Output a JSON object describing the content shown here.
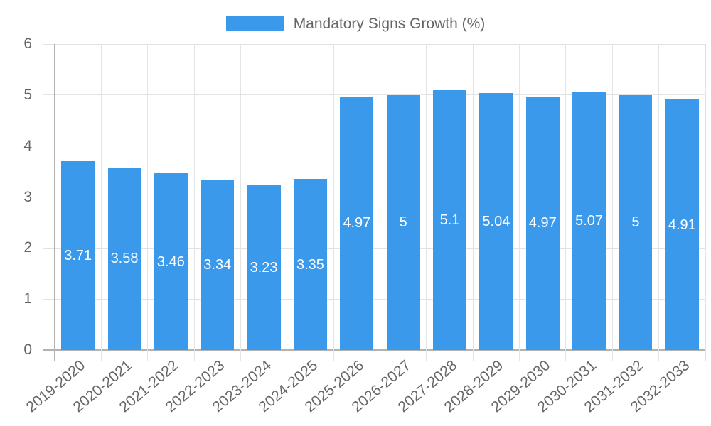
{
  "chart_data": {
    "type": "bar",
    "title": "Mandatory Signs Growth (%)",
    "legend_position": "top",
    "categories": [
      "2019-2020",
      "2020-2021",
      "2021-2022",
      "2022-2023",
      "2023-2024",
      "2024-2025",
      "2025-2026",
      "2026-2027",
      "2027-2028",
      "2028-2029",
      "2029-2030",
      "2030-2031",
      "2031-2032",
      "2032-2033"
    ],
    "values": [
      3.71,
      3.58,
      3.46,
      3.34,
      3.23,
      3.35,
      4.97,
      5,
      5.1,
      5.04,
      4.97,
      5.07,
      5,
      4.91
    ],
    "value_labels": [
      "3.71",
      "3.58",
      "3.46",
      "3.34",
      "3.23",
      "3.35",
      "4.97",
      "5",
      "5.1",
      "5.04",
      "4.97",
      "5.07",
      "5",
      "4.91"
    ],
    "xlabel": "",
    "ylabel": "",
    "ylim": [
      0,
      6
    ],
    "yticks": [
      0,
      1,
      2,
      3,
      4,
      5,
      6
    ],
    "grid": true,
    "colors": {
      "bar": "#3B99EC",
      "grid_line": "#E3E3E3",
      "axis_line": "#B2B2B2",
      "tick_label": "#666666",
      "legend_label": "#666666",
      "value_label": "#FFFFFF"
    }
  }
}
